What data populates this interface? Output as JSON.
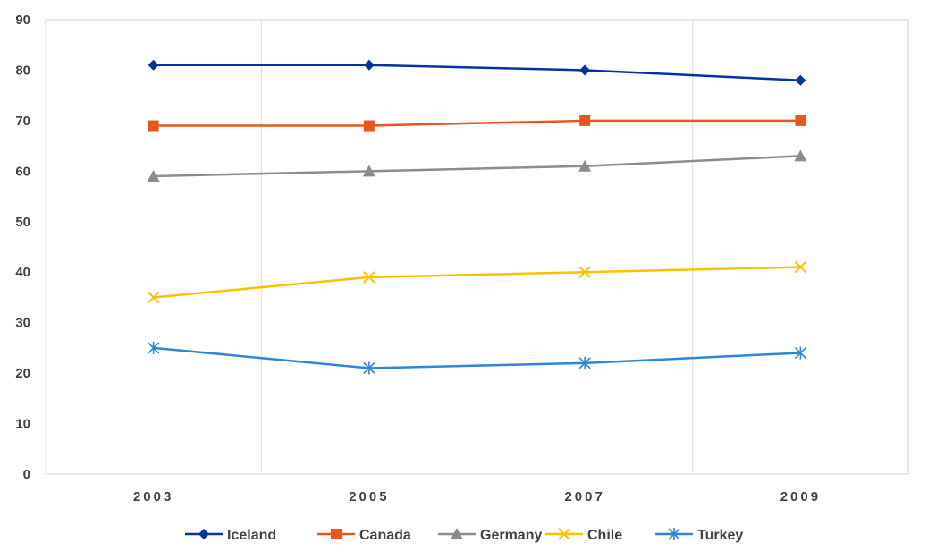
{
  "chart_data": {
    "type": "line",
    "categories": [
      "2003",
      "2005",
      "2007",
      "2009"
    ],
    "ylim": [
      0,
      90
    ],
    "yticks": [
      0,
      10,
      20,
      30,
      40,
      50,
      60,
      70,
      80,
      90
    ],
    "grid": "vertical",
    "legend_position": "bottom",
    "series": [
      {
        "name": "Iceland",
        "values": [
          81,
          81,
          80,
          78
        ],
        "color": "#0033A0",
        "marker": "diamond"
      },
      {
        "name": "Canada",
        "values": [
          69,
          69,
          70,
          70
        ],
        "color": "#E8561B",
        "marker": "square"
      },
      {
        "name": "Germany",
        "values": [
          59,
          60,
          61,
          63
        ],
        "color": "#8C8C8C",
        "marker": "triangle"
      },
      {
        "name": "Chile",
        "values": [
          35,
          39,
          40,
          41
        ],
        "color": "#FFC000",
        "marker": "x"
      },
      {
        "name": "Turkey",
        "values": [
          25,
          21,
          22,
          24
        ],
        "color": "#2E86D6",
        "marker": "asterisk"
      }
    ]
  }
}
